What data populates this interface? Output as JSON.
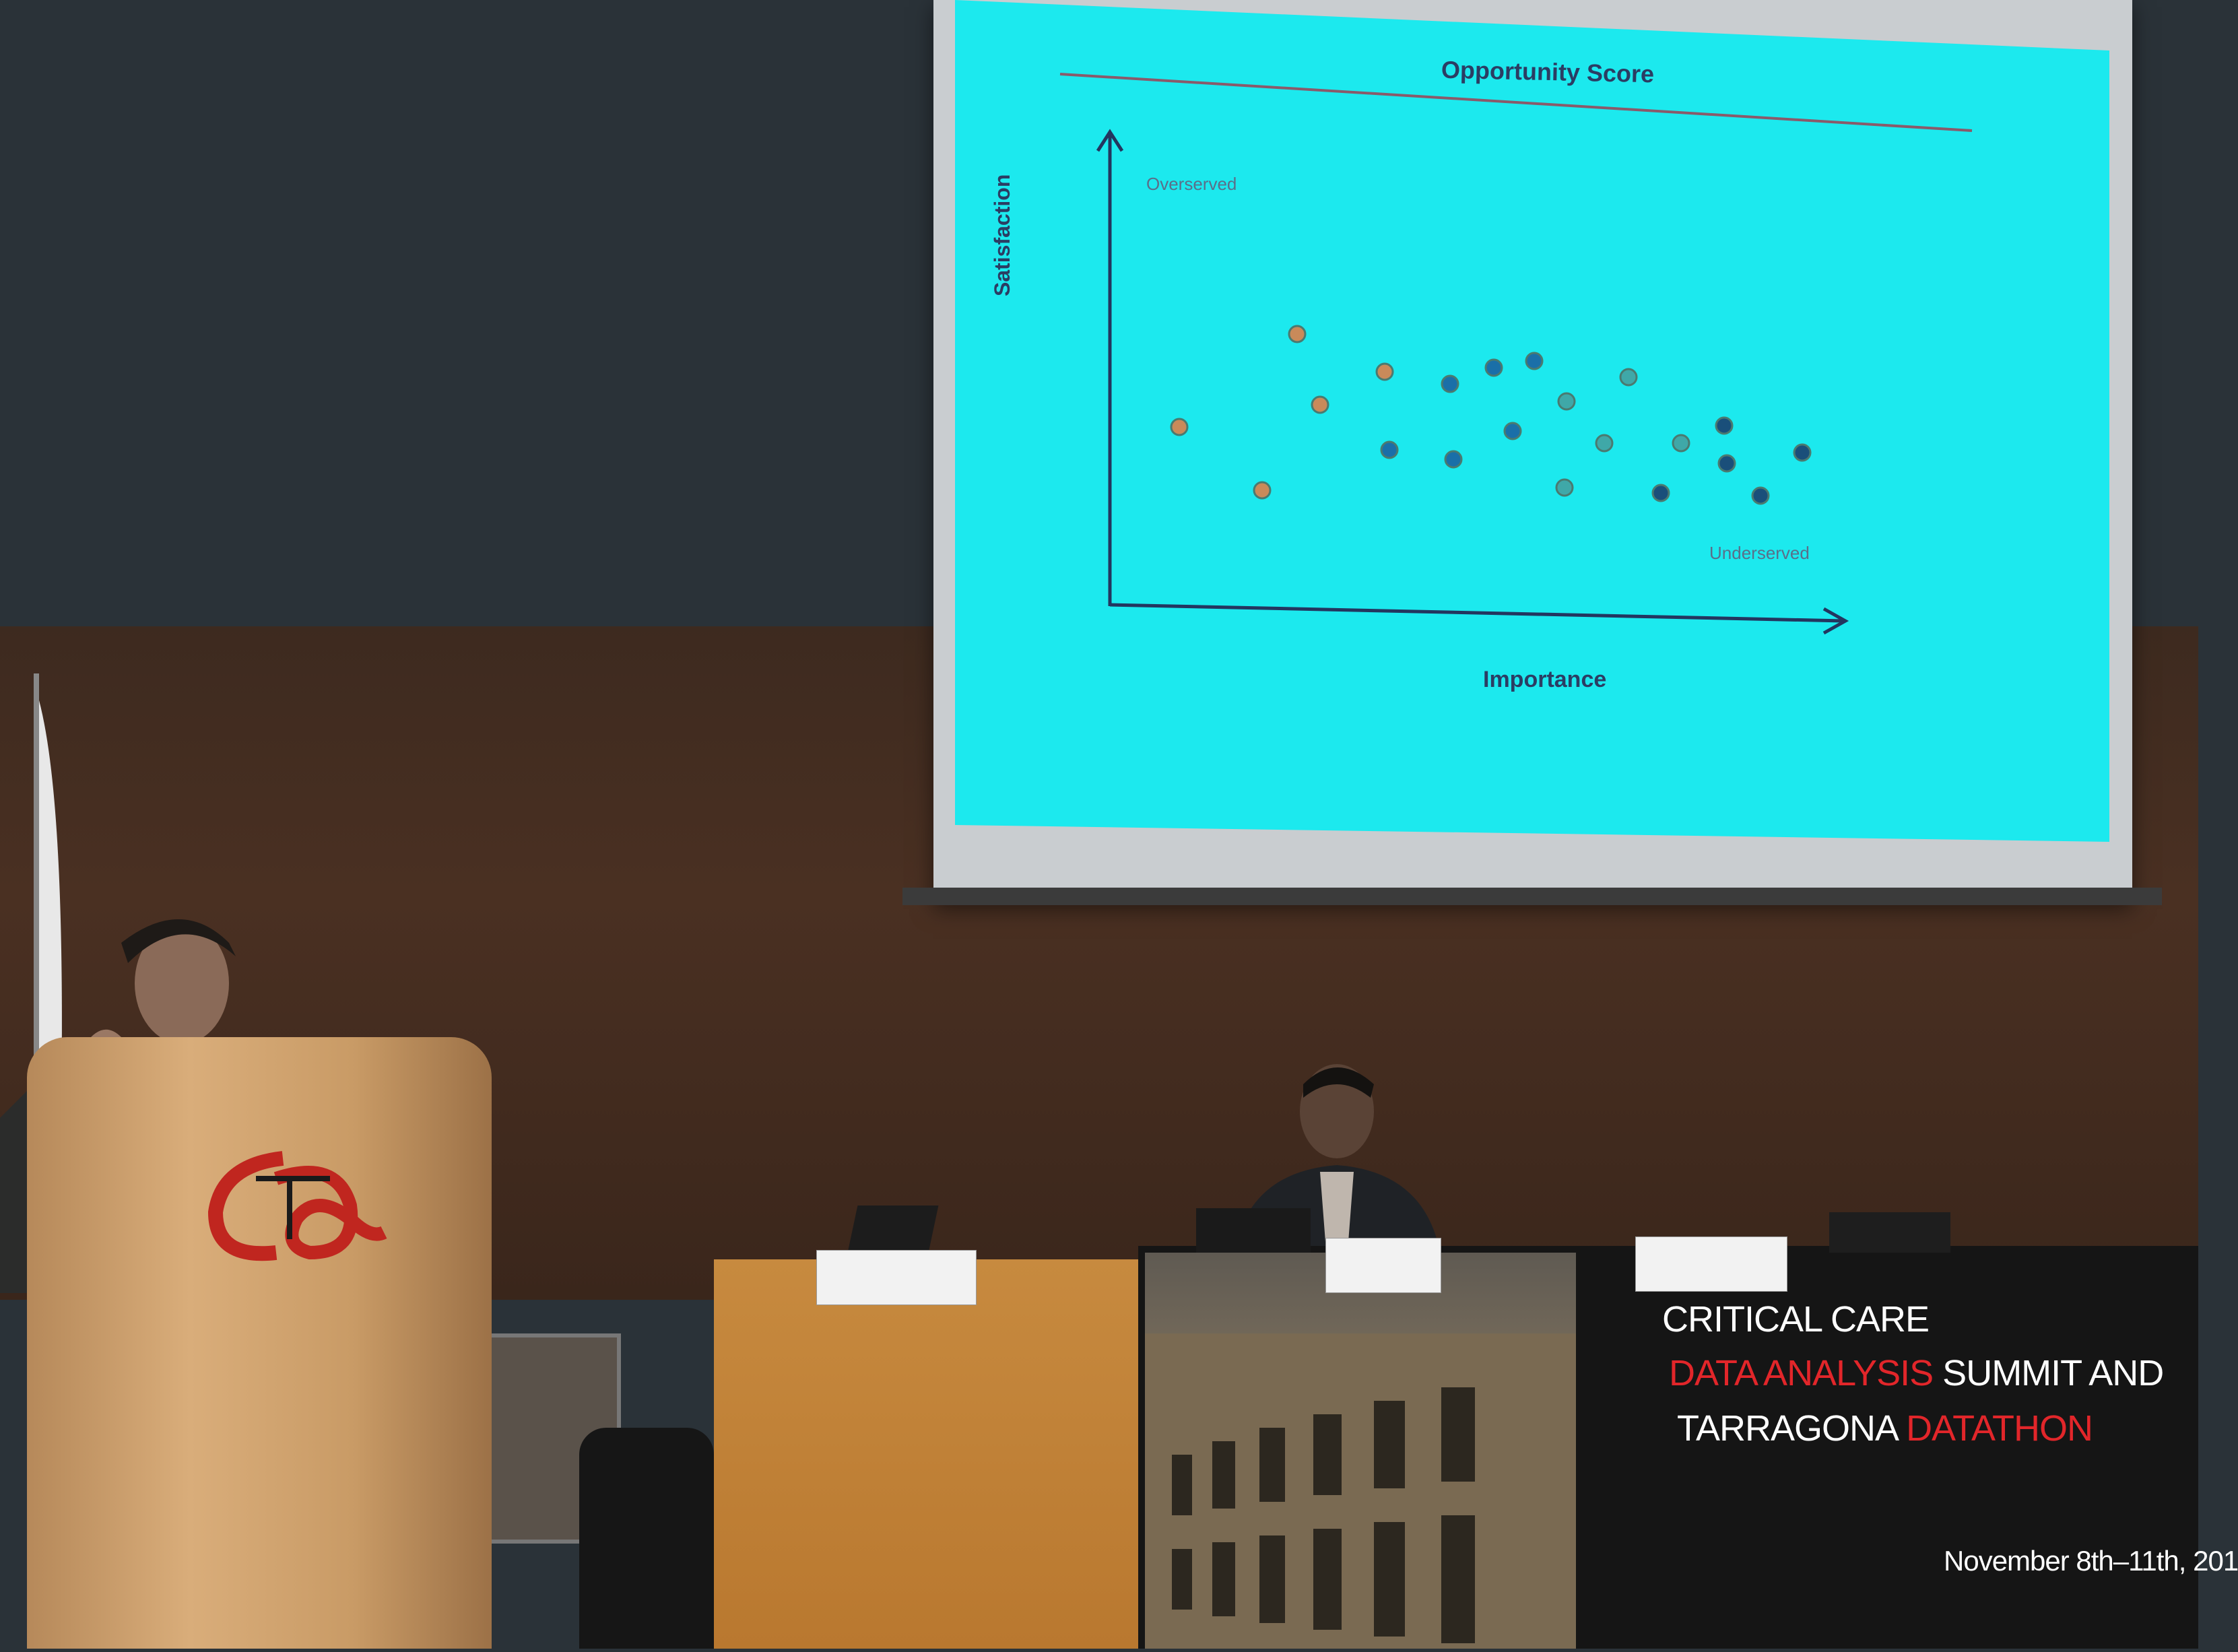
{
  "slide": {
    "title": "Opportunity Score",
    "y_axis_label": "Satisfaction",
    "x_axis_label": "Importance",
    "region_top_left": "Overserved",
    "region_bottom_right": "Underserved"
  },
  "banner": {
    "line1": "CRITICAL CARE",
    "line2_red": "DATA ANALYSIS",
    "line2_white": " SUMMIT AND",
    "line3_white": "TARRAGONA ",
    "line3_red": "DATATHON",
    "date": "November 8th–11th, 201"
  },
  "name_plates": [
    "",
    "",
    ""
  ],
  "colors": {
    "slide_background": "#1ce9ee",
    "slide_text": "#2b3d63",
    "banner_red": "#e2262a",
    "podium_wood": "#d9ad7a",
    "desk_orange": "#c78a3f"
  },
  "icons": [
    "podium-logo-icon"
  ]
}
